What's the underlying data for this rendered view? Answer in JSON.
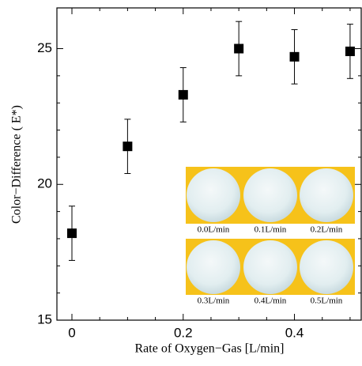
{
  "chart_data": {
    "type": "scatter",
    "xlabel": "Rate of Oxygen−Gas [L/min]",
    "ylabel": "Color−Difference (    E*)",
    "x": [
      0,
      0.1,
      0.2,
      0.3,
      0.4,
      0.5
    ],
    "values": [
      18.2,
      21.4,
      23.3,
      25.0,
      24.7,
      24.9
    ],
    "errors": [
      1.0,
      1.0,
      1.0,
      1.0,
      1.0,
      1.0
    ],
    "color": "#000000",
    "xlim": [
      -0.027,
      0.52
    ],
    "ylim": [
      15,
      26.5
    ],
    "xticks": [
      0,
      0.2,
      0.4
    ],
    "yticks": [
      15,
      20,
      25
    ],
    "inset_labels": [
      "0.0L/min",
      "0.1L/min",
      "0.2L/min",
      "0.3L/min",
      "0.4L/min",
      "0.5L/min"
    ]
  }
}
